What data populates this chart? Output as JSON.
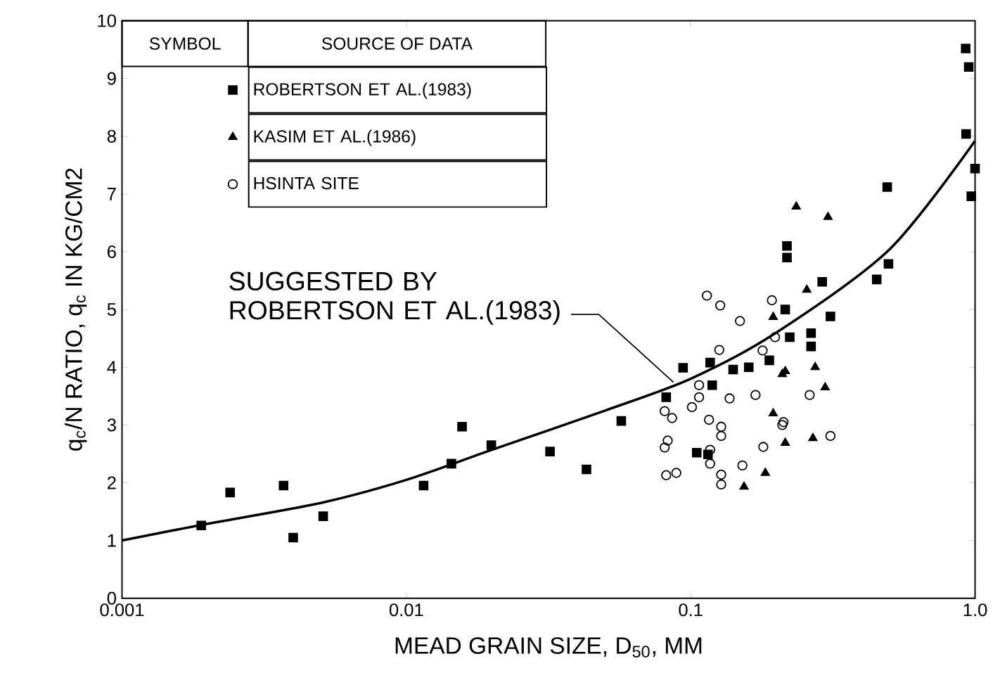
{
  "chart_data": {
    "type": "scatter",
    "xlabel": "MEAD GRAIN SIZE,  D$_{50}$,   MM",
    "ylabel": "q$_{c}$/N RATIO,  q$_{c}$ IN KG/CM2",
    "legend_title": "SOURCE OF DATA",
    "annotations": [
      {
        "text": "SUGGESTED BY ROBERTSON ET AL.(1983)",
        "x": 0.087,
        "y": 3.74
      },
      "SYMBOL"
    ],
    "log": "x",
    "legend": "top left",
    "xlim": [
      0.001,
      1.0
    ],
    "ylim": [
      0,
      10
    ],
    "xticks": [
      0.001,
      0.01,
      0.1,
      {
        "value": 1.0,
        "label": "1.0"
      }
    ],
    "yticks": [
      0,
      1,
      2,
      3,
      4,
      5,
      6,
      7,
      8,
      9,
      10
    ],
    "series": [
      {
        "name": "ROBERTSON ET AL.(1983)",
        "color": "#000000",
        "marker": "square",
        "x": [
          0.0019,
          0.0024,
          0.0037,
          0.004,
          0.0051,
          0.0115,
          0.0144,
          0.0157,
          0.0199,
          0.032,
          0.043,
          0.057,
          0.082,
          0.094,
          0.117,
          0.141,
          0.16,
          0.189,
          0.119,
          0.218,
          0.218,
          0.215,
          0.223,
          0.105,
          0.115,
          0.29,
          0.31,
          0.265,
          0.265,
          0.491,
          0.496,
          0.451,
          0.927,
          0.95,
          0.93,
          1.0,
          0.97
        ],
        "values": [
          1.26,
          1.83,
          1.95,
          1.05,
          1.42,
          1.95,
          2.33,
          2.97,
          2.65,
          2.54,
          2.23,
          3.07,
          3.48,
          3.99,
          4.08,
          3.96,
          4.0,
          4.12,
          3.69,
          5.9,
          6.1,
          5.0,
          4.52,
          2.52,
          2.49,
          5.48,
          4.88,
          4.59,
          4.36,
          7.12,
          5.79,
          5.52,
          9.52,
          9.2,
          8.04,
          7.44,
          6.96
        ]
      },
      {
        "name": "KASIM ET AL.(1986)",
        "color": "#000000",
        "marker": "triangle",
        "x": [
          0.195,
          0.215,
          0.195,
          0.215,
          0.183,
          0.154,
          0.235,
          0.304,
          0.256,
          0.274,
          0.297,
          0.269,
          0.21
        ],
        "values": [
          4.87,
          3.93,
          3.2,
          2.69,
          2.17,
          1.93,
          6.78,
          6.6,
          5.34,
          4.0,
          3.65,
          2.77,
          3.88
        ]
      },
      {
        "name": "HSINTA SITE",
        "color": "#000000",
        "marker": "circle",
        "x": [
          0.114,
          0.127,
          0.149,
          0.126,
          0.107,
          0.107,
          0.101,
          0.081,
          0.086,
          0.137,
          0.169,
          0.116,
          0.128,
          0.128,
          0.083,
          0.081,
          0.117,
          0.117,
          0.082,
          0.089,
          0.128,
          0.128,
          0.152,
          0.18,
          0.193,
          0.198,
          0.179,
          0.212,
          0.262,
          0.31,
          0.21
        ],
        "values": [
          5.24,
          5.07,
          4.8,
          4.3,
          3.69,
          3.48,
          3.31,
          3.24,
          3.12,
          3.46,
          3.52,
          3.09,
          2.97,
          2.81,
          2.73,
          2.61,
          2.57,
          2.33,
          2.13,
          2.17,
          2.14,
          1.97,
          2.3,
          2.62,
          5.16,
          4.52,
          4.29,
          3.05,
          3.52,
          2.81,
          3.0
        ]
      },
      {
        "type": "line",
        "color": "#000000",
        "x": [
          0.001,
          0.002,
          0.005,
          0.01,
          0.02,
          0.05,
          0.1,
          0.2,
          0.5,
          1.0
        ],
        "values": [
          1.0,
          1.29,
          1.65,
          2.05,
          2.57,
          3.25,
          3.8,
          4.6,
          6.04,
          7.92
        ]
      }
    ]
  }
}
